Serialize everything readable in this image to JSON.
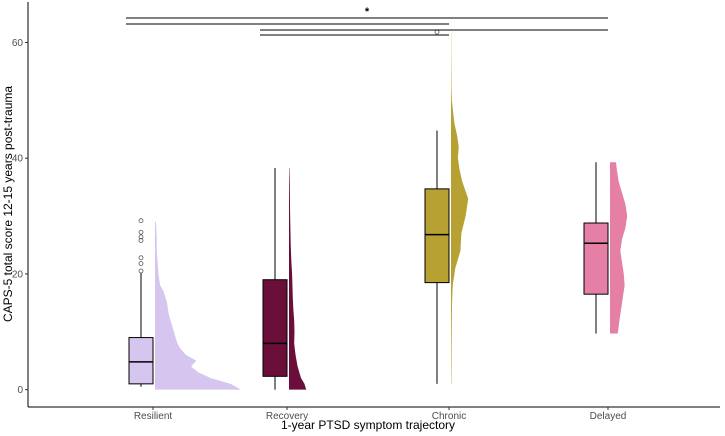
{
  "chart_data": {
    "type": "box",
    "xlabel": "1-year PTSD symptom trajectory",
    "ylabel": "CAPS-5 total score 12-15 years post-trauma",
    "categories": [
      "Resilient",
      "Recovery",
      "Chronic",
      "Delayed"
    ],
    "yticks": [
      0,
      20,
      40,
      60
    ],
    "ylim": [
      -3,
      67
    ],
    "grid": false,
    "legend": "none",
    "groups": [
      {
        "name": "Resilient",
        "color": "#d6c5ef",
        "whisker_low": 0.5,
        "q1": 1,
        "median": 4.8,
        "q3": 9,
        "whisker_high": 20.2,
        "outliers": [
          20.5,
          21.8,
          22.8,
          25.8,
          26.4,
          27.2,
          29.2
        ],
        "density": [
          [
            0,
            1.0
          ],
          [
            1,
            0.88
          ],
          [
            2,
            0.65
          ],
          [
            3,
            0.5
          ],
          [
            4,
            0.42
          ],
          [
            5,
            0.48
          ],
          [
            6,
            0.36
          ],
          [
            7,
            0.3
          ],
          [
            8,
            0.26
          ],
          [
            9,
            0.24
          ],
          [
            10,
            0.22
          ],
          [
            11,
            0.2
          ],
          [
            12,
            0.18
          ],
          [
            13,
            0.16
          ],
          [
            14,
            0.15
          ],
          [
            15,
            0.14
          ],
          [
            16,
            0.12
          ],
          [
            17,
            0.1
          ],
          [
            18,
            0.06
          ],
          [
            19,
            0.05
          ],
          [
            20,
            0.04
          ],
          [
            22,
            0.03
          ],
          [
            24,
            0.02
          ],
          [
            26,
            0.02
          ],
          [
            28,
            0.015
          ],
          [
            29,
            0.01
          ]
        ]
      },
      {
        "name": "Recovery",
        "color": "#6b0f3a",
        "whisker_low": 0,
        "q1": 2.3,
        "median": 8,
        "q3": 19,
        "whisker_high": 38.3,
        "outliers": [],
        "density": [
          [
            0,
            1.0
          ],
          [
            1,
            0.9
          ],
          [
            2,
            0.7
          ],
          [
            4,
            0.5
          ],
          [
            6,
            0.38
          ],
          [
            8,
            0.3
          ],
          [
            10,
            0.32
          ],
          [
            12,
            0.3
          ],
          [
            14,
            0.25
          ],
          [
            16,
            0.22
          ],
          [
            18,
            0.2
          ],
          [
            20,
            0.18
          ],
          [
            22,
            0.14
          ],
          [
            25,
            0.1
          ],
          [
            28,
            0.08
          ],
          [
            31,
            0.06
          ],
          [
            34,
            0.05
          ],
          [
            36,
            0.04
          ],
          [
            38.3,
            0.02
          ]
        ]
      },
      {
        "name": "Chronic",
        "color": "#b8a133",
        "whisker_low": 1,
        "q1": 18.5,
        "median": 26.8,
        "q3": 34.7,
        "whisker_high": 44.8,
        "outliers": [
          61.8
        ],
        "density": [
          [
            1,
            0.02
          ],
          [
            5,
            0.03
          ],
          [
            10,
            0.04
          ],
          [
            15,
            0.06
          ],
          [
            18,
            0.1
          ],
          [
            21,
            0.25
          ],
          [
            24,
            0.55
          ],
          [
            27,
            0.6
          ],
          [
            30,
            0.85
          ],
          [
            33,
            1.0
          ],
          [
            36,
            0.65
          ],
          [
            38,
            0.5
          ],
          [
            40,
            0.4
          ],
          [
            42,
            0.45
          ],
          [
            44,
            0.35
          ],
          [
            46,
            0.2
          ],
          [
            48,
            0.12
          ],
          [
            50,
            0.05
          ],
          [
            52,
            0.03
          ],
          [
            55,
            0.02
          ],
          [
            58,
            0.015
          ],
          [
            61.8,
            0.01
          ]
        ]
      },
      {
        "name": "Delayed",
        "color": "#e57fa6",
        "whisker_low": 9.7,
        "q1": 16.5,
        "median": 25.3,
        "q3": 28.8,
        "whisker_high": 39.3,
        "outliers": [],
        "density": [
          [
            9.7,
            0.45
          ],
          [
            12,
            0.55
          ],
          [
            15,
            0.7
          ],
          [
            18,
            0.85
          ],
          [
            20,
            0.8
          ],
          [
            22,
            0.7
          ],
          [
            24,
            0.6
          ],
          [
            26,
            0.7
          ],
          [
            28,
            0.9
          ],
          [
            30,
            1.0
          ],
          [
            32,
            0.9
          ],
          [
            34,
            0.7
          ],
          [
            36,
            0.5
          ],
          [
            38,
            0.4
          ],
          [
            39.3,
            0.35
          ]
        ]
      }
    ],
    "significance": {
      "label": "*",
      "brackets": [
        {
          "from": 0,
          "to": 3,
          "y": 67
        },
        {
          "from": 0,
          "to": 2,
          "y": 66
        },
        {
          "from": 1,
          "to": 3,
          "y": 65
        },
        {
          "from": 1,
          "to": 2,
          "y": 64
        }
      ]
    }
  }
}
